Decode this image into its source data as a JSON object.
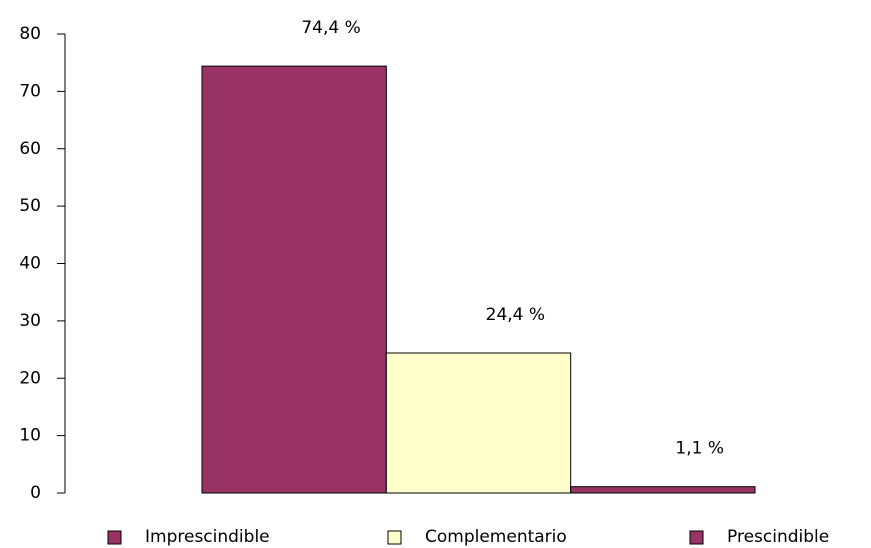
{
  "chart_data": {
    "type": "bar",
    "series": [
      {
        "name": "Imprescindible",
        "color": "#993366",
        "values": [
          74.4
        ],
        "value_labels": [
          "74,4 %"
        ]
      },
      {
        "name": "Complementario",
        "color": "#ffffcc",
        "values": [
          24.4
        ],
        "value_labels": [
          "24,4 %"
        ]
      },
      {
        "name": "Prescindible",
        "color": "#993366",
        "values": [
          1.1
        ],
        "value_labels": [
          "1,1 %"
        ]
      }
    ],
    "ylim": [
      0,
      80
    ],
    "yticks": [
      0,
      10,
      20,
      30,
      40,
      50,
      60,
      70,
      80
    ]
  }
}
